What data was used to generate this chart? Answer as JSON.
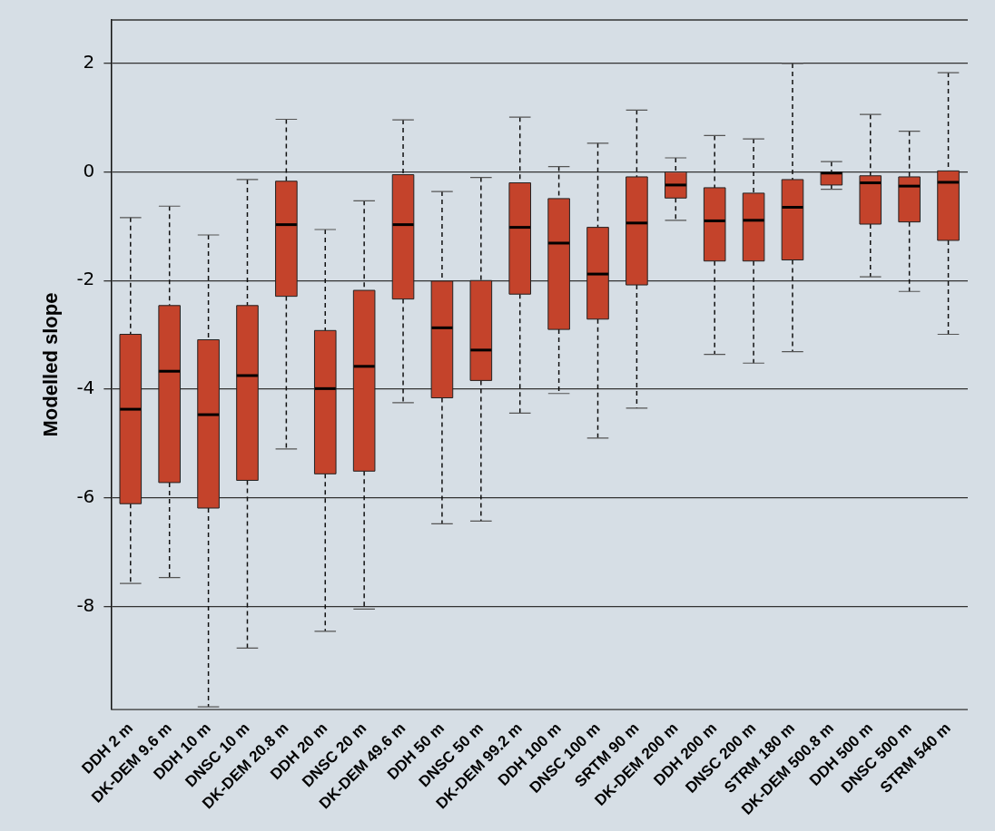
{
  "chart_data": {
    "type": "box",
    "ylabel": "Modelled slope",
    "categories": [
      "DDH 2 m",
      "DK-DEM 9.6 m",
      "DDH 10 m",
      "DNSC 10 m",
      "DK-DEM 20.8 m",
      "DDH 20 m",
      "DNSC 20 m",
      "DK-DEM 49.6 m",
      "DDH 50 m",
      "DNSC 50 m",
      "DK-DEM 99.2 m",
      "DDH 100 m",
      "DNSC 100 m",
      "SRTM 90 m",
      "DK-DEM 200 m",
      "DDH 200 m",
      "DNSC 200 m",
      "STRM 180 m",
      "DK-DEM 500.8 m",
      "DDH 500 m",
      "DNSC 500 m",
      "STRM 540 m"
    ],
    "color": "#c4432b",
    "boxes": [
      {
        "low": -7.58,
        "q1": -6.11,
        "median": -4.37,
        "q3": -2.99,
        "high": -0.84
      },
      {
        "low": -7.47,
        "q1": -5.72,
        "median": -3.67,
        "q3": -2.46,
        "high": -0.63
      },
      {
        "low": -9.85,
        "q1": -6.19,
        "median": -4.47,
        "q3": -3.09,
        "high": -1.16
      },
      {
        "low": -8.77,
        "q1": -5.68,
        "median": -3.75,
        "q3": -2.46,
        "high": -0.14
      },
      {
        "low": -5.1,
        "q1": -2.29,
        "median": -0.97,
        "q3": -0.17,
        "high": 0.97
      },
      {
        "low": -8.46,
        "q1": -5.56,
        "median": -3.99,
        "q3": -2.92,
        "high": -1.06
      },
      {
        "low": -8.05,
        "q1": -5.51,
        "median": -3.58,
        "q3": -2.18,
        "high": -0.53
      },
      {
        "low": -4.25,
        "q1": -2.34,
        "median": -0.97,
        "q3": -0.05,
        "high": 0.96
      },
      {
        "low": -6.48,
        "q1": -4.16,
        "median": -2.87,
        "q3": -2.01,
        "high": -0.36
      },
      {
        "low": -6.43,
        "q1": -3.84,
        "median": -3.28,
        "q3": -2.0,
        "high": -0.1
      },
      {
        "low": -4.44,
        "q1": -2.25,
        "median": -1.02,
        "q3": -0.2,
        "high": 1.01
      },
      {
        "low": -4.08,
        "q1": -2.9,
        "median": -1.31,
        "q3": -0.49,
        "high": 0.1
      },
      {
        "low": -4.9,
        "q1": -2.71,
        "median": -1.88,
        "q3": -1.02,
        "high": 0.53
      },
      {
        "low": -4.35,
        "q1": -2.08,
        "median": -0.94,
        "q3": -0.09,
        "high": 1.14
      },
      {
        "low": -0.89,
        "q1": -0.48,
        "median": -0.24,
        "q3": 0.0,
        "high": 0.26
      },
      {
        "low": -3.36,
        "q1": -1.64,
        "median": -0.9,
        "q3": -0.29,
        "high": 0.67
      },
      {
        "low": -3.52,
        "q1": -1.64,
        "median": -0.89,
        "q3": -0.39,
        "high": 0.61
      },
      {
        "low": -3.31,
        "q1": -1.62,
        "median": -0.65,
        "q3": -0.14,
        "high": 2.0
      },
      {
        "low": -0.32,
        "q1": -0.24,
        "median": -0.02,
        "q3": 0.0,
        "high": 0.19
      },
      {
        "low": -1.93,
        "q1": -0.96,
        "median": -0.2,
        "q3": -0.07,
        "high": 1.06
      },
      {
        "low": -2.2,
        "q1": -0.92,
        "median": -0.26,
        "q3": -0.09,
        "high": 0.75
      },
      {
        "low": -2.99,
        "q1": -1.26,
        "median": -0.19,
        "q3": 0.02,
        "high": 1.83
      }
    ],
    "ylim": [
      -9.9,
      2.8
    ],
    "yticks": [
      -8,
      -6,
      -4,
      -2,
      0,
      2
    ],
    "grid": "y",
    "legend": false
  }
}
